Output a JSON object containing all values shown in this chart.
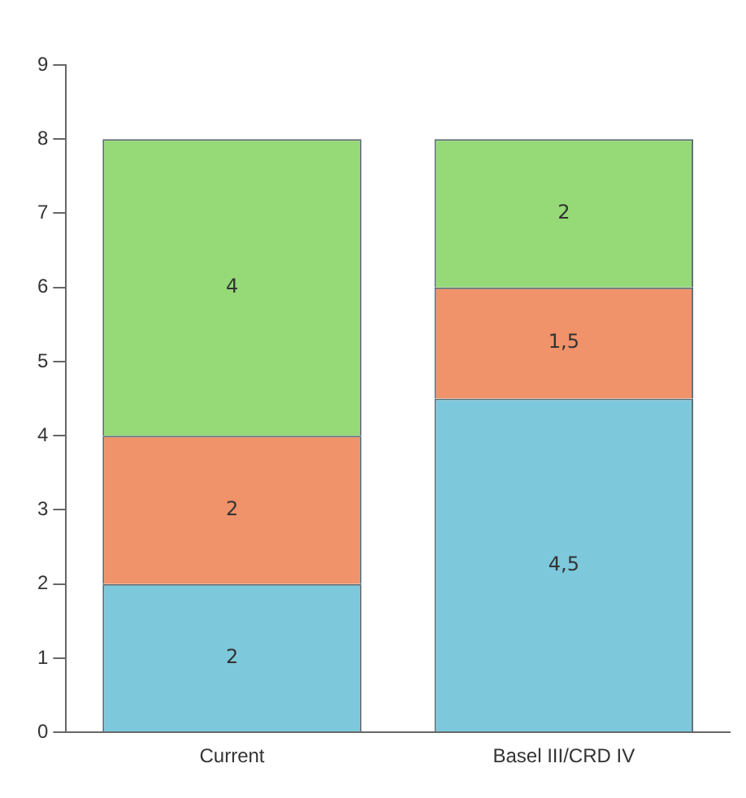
{
  "chart_data": {
    "type": "bar",
    "stacked": true,
    "categories": [
      "Current",
      "Basel III/CRD IV"
    ],
    "series": [
      {
        "color": "#7ec8dc",
        "values": [
          2,
          4.5
        ],
        "value_labels": [
          "2",
          "4,5"
        ]
      },
      {
        "color": "#f0936a",
        "values": [
          2,
          1.5
        ],
        "value_labels": [
          "2",
          "1,5"
        ]
      },
      {
        "color": "#96d977",
        "values": [
          4,
          2
        ],
        "value_labels": [
          "4",
          "2"
        ]
      }
    ],
    "ylim": [
      0,
      9
    ],
    "yticks": [
      0,
      1,
      2,
      3,
      4,
      5,
      6,
      7,
      8,
      9
    ],
    "grid": false,
    "legend": false
  }
}
